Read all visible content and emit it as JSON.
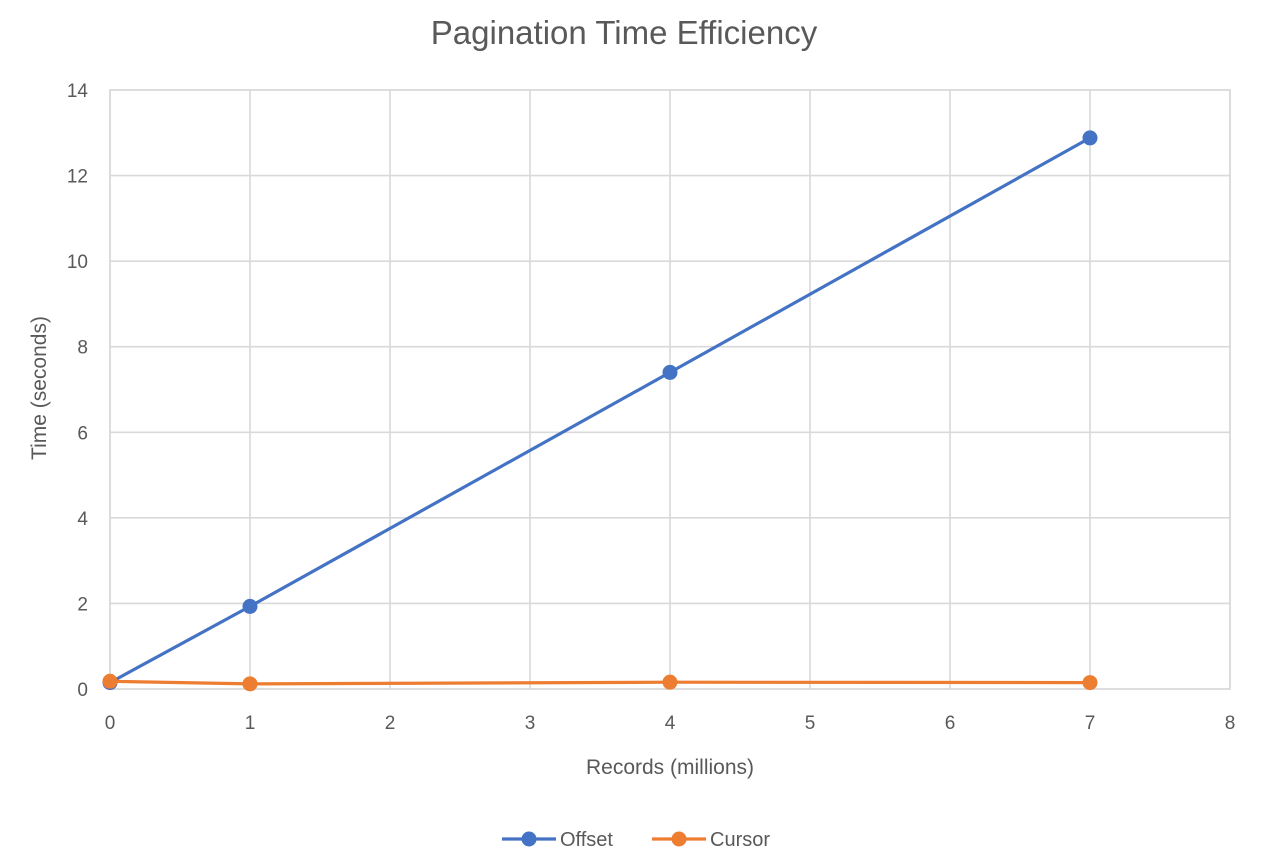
{
  "chart_data": {
    "type": "scatter",
    "title": "Pagination Time Efficiency",
    "xlabel": "Records (millions)",
    "ylabel": "Time (seconds)",
    "xlim": [
      0,
      8
    ],
    "ylim": [
      0,
      14
    ],
    "xticks": [
      "0",
      "1",
      "2",
      "3",
      "4",
      "5",
      "6",
      "7",
      "8"
    ],
    "yticks": [
      "0",
      "2",
      "4",
      "6",
      "8",
      "10",
      "12",
      "14"
    ],
    "grid": true,
    "legend_position": "bottom",
    "series": [
      {
        "name": "Offset",
        "color": "#4472C4",
        "x": [
          0,
          1,
          4,
          7
        ],
        "y": [
          0.15,
          1.93,
          7.4,
          12.88
        ]
      },
      {
        "name": "Cursor",
        "color": "#ED7D31",
        "x": [
          0,
          1,
          4,
          7
        ],
        "y": [
          0.18,
          0.12,
          0.16,
          0.15
        ]
      }
    ]
  }
}
